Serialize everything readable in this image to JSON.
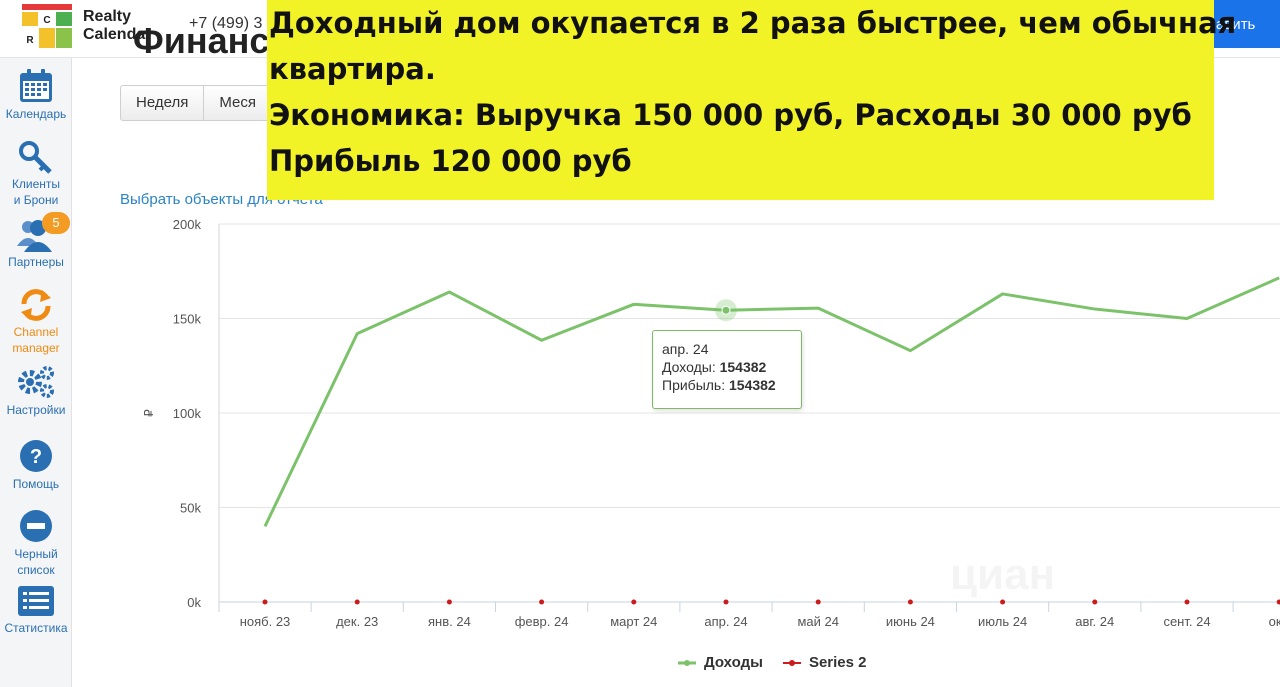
{
  "app": {
    "brand_line1": "Realty",
    "brand_line2": "Calendar",
    "logo_letters": [
      "C",
      "R"
    ],
    "phone": "+7 (499) 3",
    "add_button": "авить",
    "page_title": "Финанс"
  },
  "sidebar": {
    "items": [
      {
        "label": "Календарь",
        "icon": "calendar-icon"
      },
      {
        "label": "Клиенты\nи Брони",
        "icon": "key-icon"
      },
      {
        "label": "Партнеры",
        "icon": "users-icon",
        "badge": "5"
      },
      {
        "label": "Channel\nmanager",
        "icon": "sync-icon"
      },
      {
        "label": "Настройки",
        "icon": "gears-icon"
      },
      {
        "label": "Помощь",
        "icon": "help-icon"
      },
      {
        "label": "Черный\nсписок",
        "icon": "minus-circle-icon"
      },
      {
        "label": "Статистика",
        "icon": "list-icon"
      }
    ]
  },
  "period_tabs": [
    "Неделя",
    "Меся"
  ],
  "select_objects_link": "Выбрать объекты для отчета",
  "banner": {
    "line1": "Доходный дом окупается в 2 раза быстрее, чем обычная",
    "line2": "квартира.",
    "line3": "Экономика: Выручка 150 000 руб, Расходы 30 000 руб",
    "line4": "Прибыль 120 000 руб"
  },
  "tooltip": {
    "title": "апр. 24",
    "income_label": "Доходы: ",
    "income_value": "154382",
    "profit_label": "Прибыль: ",
    "profit_value": "154382"
  },
  "watermark": "циан",
  "colors": {
    "income": "#7cc26a",
    "series2": "#cc1b1b",
    "accent": "#1a73e8",
    "banner": "#f2f327"
  },
  "chart_data": {
    "type": "line",
    "categories": [
      "нояб. 23",
      "дек. 23",
      "янв. 24",
      "февр. 24",
      "март 24",
      "апр. 24",
      "май 24",
      "июнь 24",
      "июль 24",
      "авг. 24",
      "сент. 24",
      "окт."
    ],
    "series": [
      {
        "name": "Доходы",
        "values": [
          40000,
          142000,
          164000,
          138500,
          157500,
          154382,
          155500,
          133000,
          163000,
          155000,
          150000,
          171500
        ]
      },
      {
        "name": "Series 2",
        "values": [
          0,
          0,
          0,
          0,
          0,
          0,
          0,
          0,
          0,
          0,
          0,
          0
        ]
      }
    ],
    "y_ticks": [
      "0k",
      "50k",
      "100k",
      "150k",
      "200k"
    ],
    "ylabel": "₽",
    "ylim": [
      0,
      200000
    ],
    "grid": true,
    "legend": "bottom-center",
    "highlighted_category": "апр. 24"
  }
}
